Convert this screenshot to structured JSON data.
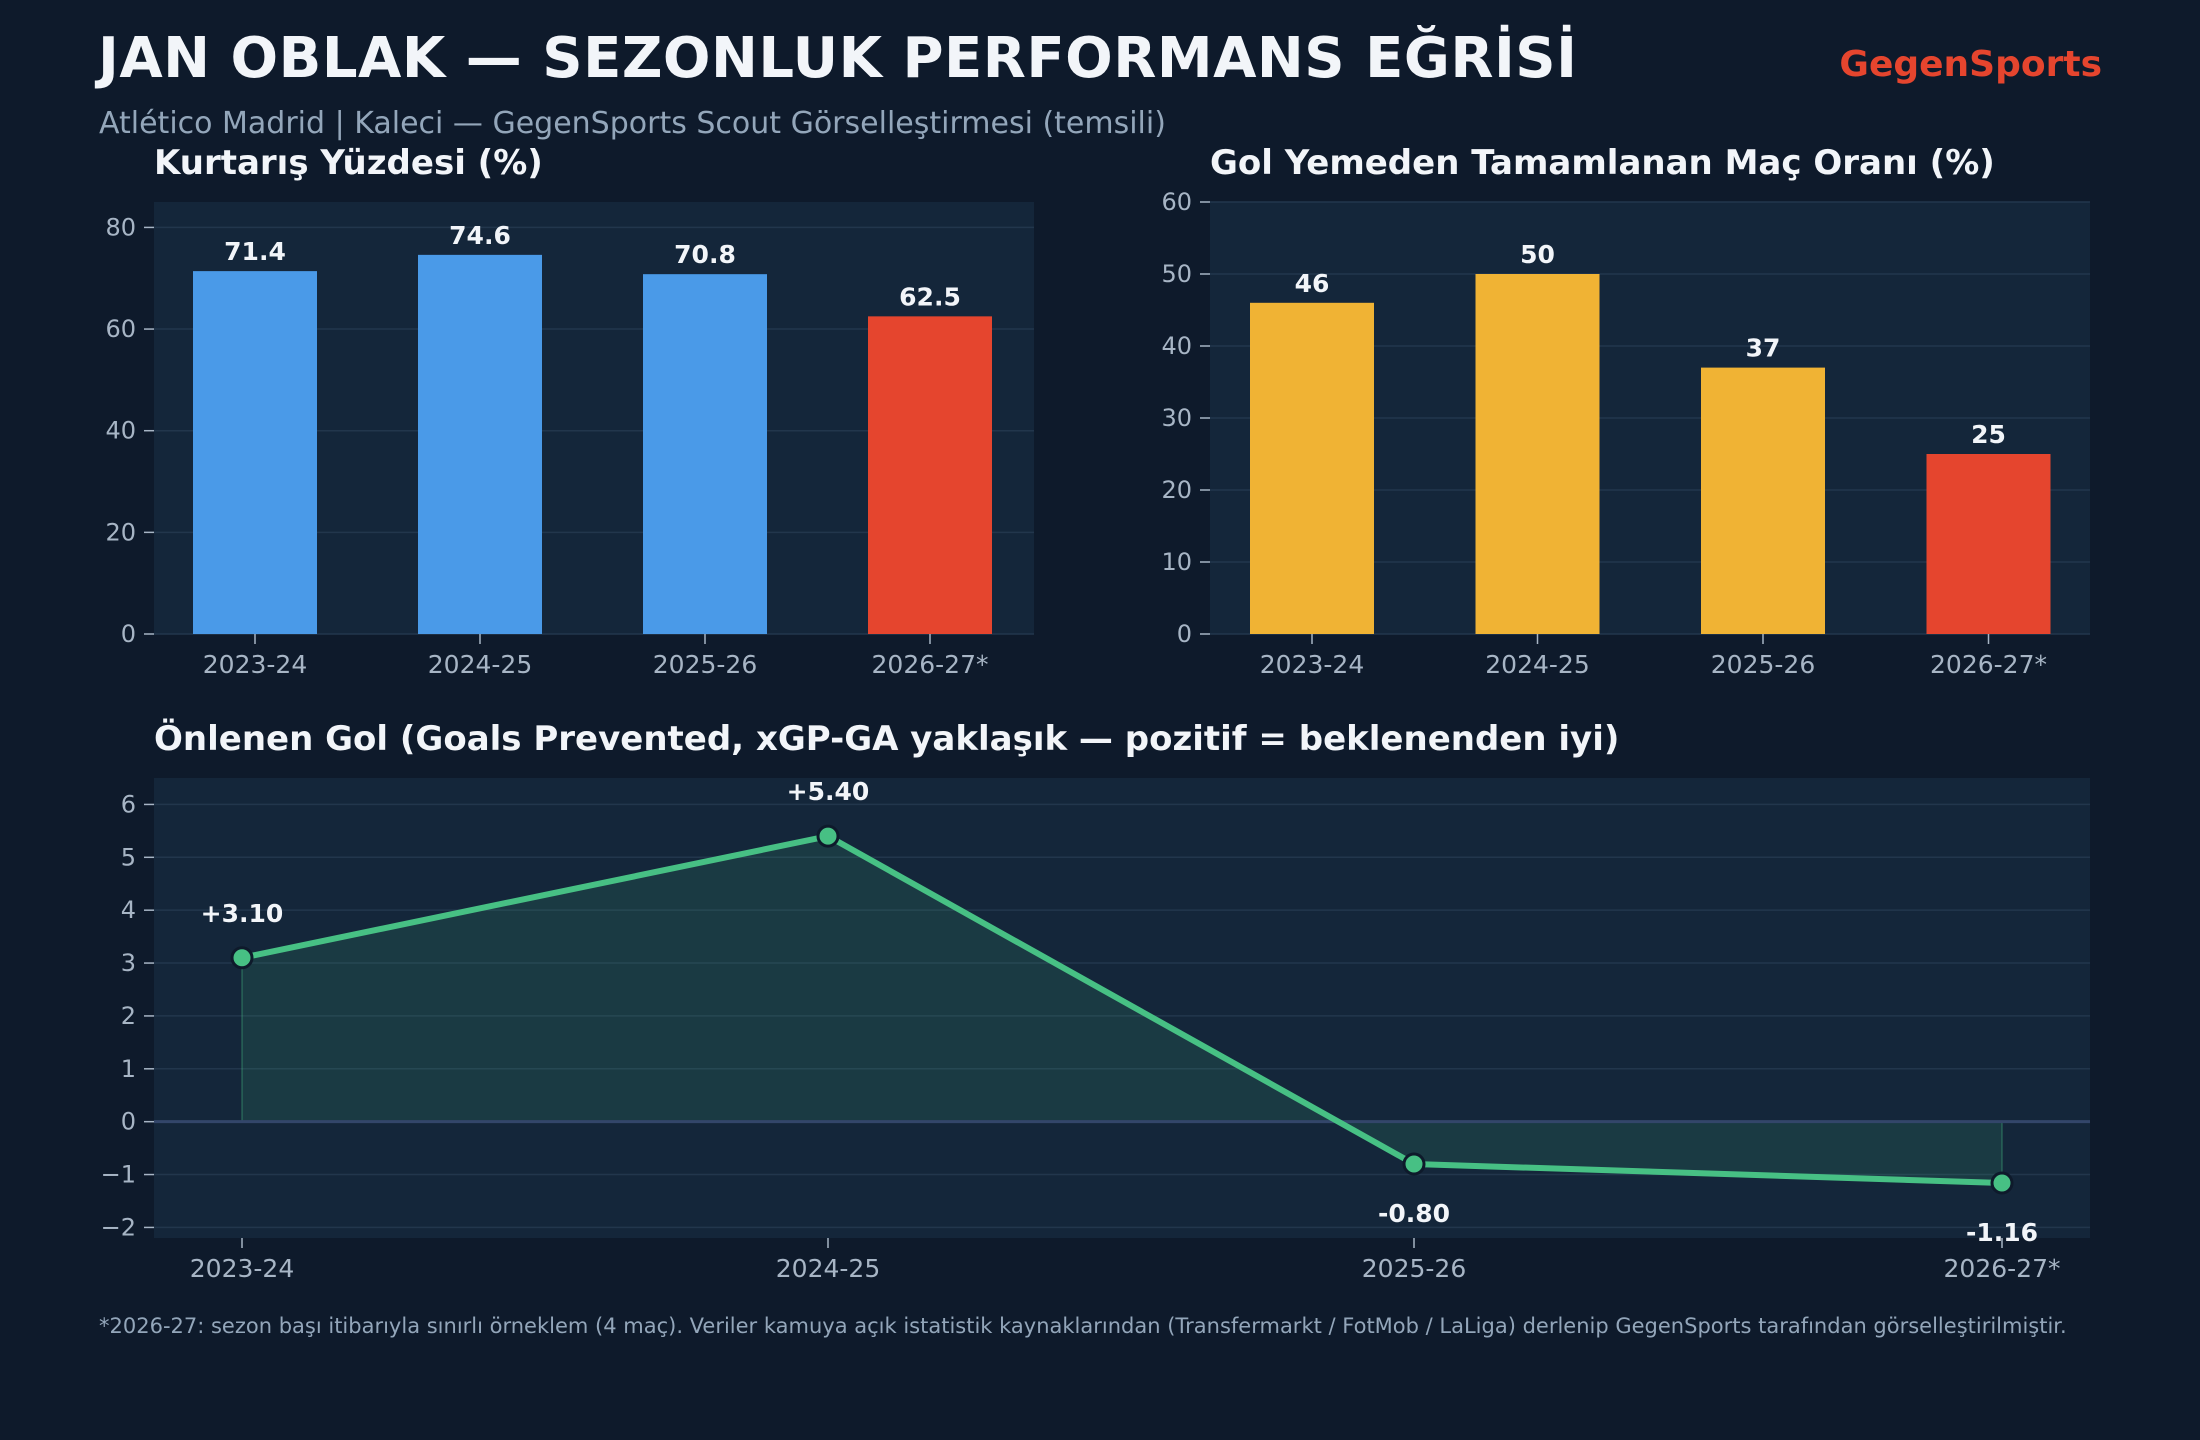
{
  "header": {
    "title": "JAN OBLAK — SEZONLUK PERFORMANS EĞRİSİ",
    "subtitle": "Atlético Madrid | Kaleci — GegenSports Scout Görselleştirmesi (temsili)",
    "brand": "GegenSports"
  },
  "footnote": "*2026-27: sezon başı itibarıyla sınırlı örneklem (4 maç). Veriler kamuya açık istatistik kaynaklarından (Transfermarkt / FotMob / LaLiga) derlenip GegenSports tarafından görselleştirilmiştir.",
  "colors": {
    "background": "#0e1a2b",
    "panel": "#14263a",
    "blue": "#4a9ae8",
    "orange": "#f0b334",
    "red": "#e5452e",
    "green": "#47c084"
  },
  "chart_data": [
    {
      "type": "bar",
      "title": "Kurtarış Yüzdesi (%)",
      "categories": [
        "2023-24",
        "2024-25",
        "2025-26",
        "2026-27*"
      ],
      "values": [
        71.4,
        74.6,
        70.8,
        62.5
      ],
      "value_labels": [
        "71.4",
        "74.6",
        "70.8",
        "62.5"
      ],
      "bar_colors": [
        "#4a9ae8",
        "#4a9ae8",
        "#4a9ae8",
        "#e5452e"
      ],
      "ylim": [
        0,
        85
      ],
      "yticks": [
        0,
        20,
        40,
        60,
        80
      ],
      "grid": true
    },
    {
      "type": "bar",
      "title": "Gol Yemeden Tamamlanan Maç Oranı (%)",
      "categories": [
        "2023-24",
        "2024-25",
        "2025-26",
        "2026-27*"
      ],
      "values": [
        46,
        50,
        37,
        25
      ],
      "value_labels": [
        "46",
        "50",
        "37",
        "25"
      ],
      "bar_colors": [
        "#f0b334",
        "#f0b334",
        "#f0b334",
        "#e5452e"
      ],
      "ylim": [
        0,
        60
      ],
      "yticks": [
        0,
        10,
        20,
        30,
        40,
        50,
        60
      ],
      "grid": true
    },
    {
      "type": "line",
      "title": "Önlenen Gol (Goals Prevented, xGP-GA yaklaşık — pozitif = beklenenden iyi)",
      "categories": [
        "2023-24",
        "2024-25",
        "2025-26",
        "2026-27*"
      ],
      "values": [
        3.1,
        5.4,
        -0.8,
        -1.16
      ],
      "value_labels": [
        "+3.10",
        "+5.40",
        "-0.80",
        "-1.16"
      ],
      "ylim": [
        -2.2,
        6.5
      ],
      "yticks": [
        -2,
        -1,
        0,
        1,
        2,
        3,
        4,
        5,
        6
      ],
      "ytick_labels": [
        "−2",
        "−1",
        "0",
        "1",
        "2",
        "3",
        "4",
        "5",
        "6"
      ],
      "fill_to_zero": true,
      "grid": true
    }
  ]
}
